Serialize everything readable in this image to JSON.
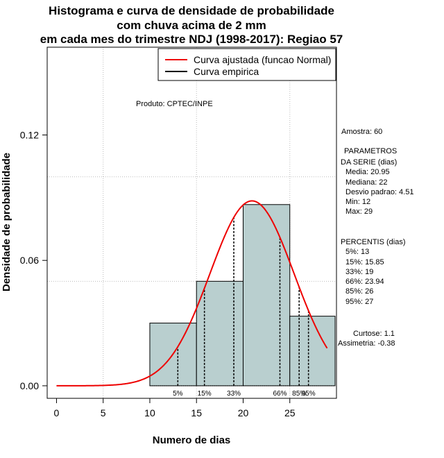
{
  "chart_data": {
    "type": "histogram",
    "title_lines": [
      "Histograma e curva de densidade de probabilidade",
      "com chuva acima de 2 mm",
      "em cada mes do trimestre NDJ (1998-2017): Regiao 57"
    ],
    "xlabel": "Numero de dias",
    "ylabel": "Densidade de probabilidade",
    "xlim": [
      -1,
      30
    ],
    "ylim": [
      -0.006,
      0.162
    ],
    "x_ticks": [
      0,
      5,
      10,
      15,
      20,
      25
    ],
    "y_ticks": [
      0.0,
      0.06,
      0.12
    ],
    "y_tick_labels": [
      "0.00",
      "0.06",
      "0.12"
    ],
    "grid_x": [
      5,
      15,
      25
    ],
    "grid_y": [
      0.05,
      0.1
    ],
    "bins": [
      {
        "from": 10,
        "to": 15,
        "density": 0.03
      },
      {
        "from": 15,
        "to": 20,
        "density": 0.05
      },
      {
        "from": 20,
        "to": 25,
        "density": 0.0867
      },
      {
        "from": 25,
        "to": 30,
        "density": 0.0333
      }
    ],
    "fitted_curve": {
      "distribution": "Normal",
      "mean": 20.95,
      "sd": 4.51,
      "x_from": 0,
      "x_to": 29
    },
    "percentiles": [
      {
        "label": "5%",
        "value": 13
      },
      {
        "label": "15%",
        "value": 15.85
      },
      {
        "label": "33%",
        "value": 19
      },
      {
        "label": "66%",
        "value": 23.94
      },
      {
        "label": "85%",
        "value": 26
      },
      {
        "label": "95%",
        "value": 27
      }
    ],
    "legend": {
      "position": "top-right",
      "items": [
        {
          "label": "Curva ajustada (funcao Normal)",
          "color": "#ee0000"
        },
        {
          "label": "Curva empirica",
          "color": "#000000"
        }
      ]
    },
    "annotations": {
      "produto": "Produto: CPTEC/INPE",
      "amostra": "Amostra: 60",
      "parametros": [
        "PARAMETROS",
        "DA SERIE (dias)",
        "Media: 20.95",
        "Mediana: 22",
        "Desvio padrao: 4.51",
        "Min: 12",
        "Max: 29"
      ],
      "percentis": [
        "PERCENTIS (dias)",
        "5%: 13",
        "15%: 15.85",
        "33%: 19",
        "66%: 23.94",
        "85%: 26",
        "95%: 27"
      ],
      "curtose": "Curtose: 1.1",
      "assimetria": "Assimetria: -0.38"
    },
    "colors": {
      "bar_fill": "#b9cfcf",
      "curve": "#ee0000",
      "grid": "#bbbbbb"
    }
  }
}
